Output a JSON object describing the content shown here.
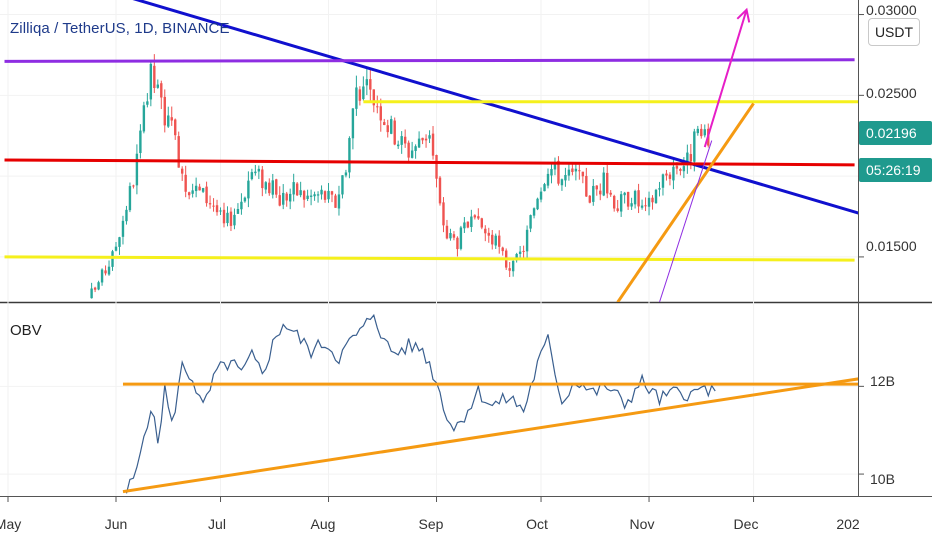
{
  "header": {
    "title": "Zilliqa / TetherUS, 1D, BINANCE",
    "currency": "USDT"
  },
  "colors": {
    "up": "#26a69a",
    "down": "#ef5350",
    "blue_line": "#1010ce",
    "red_line": "#e60000",
    "purple_line": "#8e2de2",
    "yellow_line": "#f5f01c",
    "orange_line": "#f59a12",
    "magenta_arrow": "#e61ec7",
    "obv_line": "#3a5f8f",
    "badge": "#1f9a8e"
  },
  "chart_data": [
    {
      "type": "candlestick",
      "title": "Zilliqa / TetherUS, 1D, BINANCE",
      "y_scale": "linear",
      "ylim": [
        0.01221,
        0.0309
      ],
      "x_range": [
        "2019-04-30",
        "2020-01-05"
      ],
      "last_price": "0.02196",
      "countdown": "05:26:19",
      "y_ticks": [
        "0.03000",
        "0.02500",
        "0.01500"
      ],
      "x_ticks": [
        "May",
        "Jun",
        "Jul",
        "Aug",
        "Sep",
        "Oct",
        "Nov",
        "Dec",
        "202"
      ],
      "close_path": [
        [
          "2019-05-25",
          0.0127
        ],
        [
          "2019-05-28",
          0.0138
        ],
        [
          "2019-05-31",
          0.015
        ],
        [
          "2019-06-03",
          0.0174
        ],
        [
          "2019-06-06",
          0.0198
        ],
        [
          "2019-06-09",
          0.0236
        ],
        [
          "2019-06-11",
          0.0262
        ],
        [
          "2019-06-13",
          0.0251
        ],
        [
          "2019-06-15",
          0.0238
        ],
        [
          "2019-06-18",
          0.0221
        ],
        [
          "2019-06-21",
          0.0196
        ],
        [
          "2019-06-25",
          0.019
        ],
        [
          "2019-06-29",
          0.0183
        ],
        [
          "2019-07-02",
          0.0169
        ],
        [
          "2019-07-06",
          0.0181
        ],
        [
          "2019-07-10",
          0.0203
        ],
        [
          "2019-07-14",
          0.0196
        ],
        [
          "2019-07-18",
          0.0186
        ],
        [
          "2019-07-22",
          0.0191
        ],
        [
          "2019-07-26",
          0.0187
        ],
        [
          "2019-07-30",
          0.0189
        ],
        [
          "2019-08-03",
          0.0183
        ],
        [
          "2019-08-06",
          0.0208
        ],
        [
          "2019-08-09",
          0.0256
        ],
        [
          "2019-08-12",
          0.0252
        ],
        [
          "2019-08-15",
          0.0246
        ],
        [
          "2019-08-18",
          0.0232
        ],
        [
          "2019-08-21",
          0.0223
        ],
        [
          "2019-08-24",
          0.0216
        ],
        [
          "2019-08-27",
          0.0221
        ],
        [
          "2019-08-30",
          0.0229
        ],
        [
          "2019-09-02",
          0.018
        ],
        [
          "2019-09-04",
          0.0163
        ],
        [
          "2019-09-07",
          0.016
        ],
        [
          "2019-09-10",
          0.017
        ],
        [
          "2019-09-14",
          0.0168
        ],
        [
          "2019-09-18",
          0.0158
        ],
        [
          "2019-09-21",
          0.0146
        ],
        [
          "2019-09-23",
          0.0143
        ],
        [
          "2019-09-26",
          0.0156
        ],
        [
          "2019-09-30",
          0.019
        ],
        [
          "2019-10-03",
          0.0207
        ],
        [
          "2019-10-07",
          0.0199
        ],
        [
          "2019-10-11",
          0.02
        ],
        [
          "2019-10-15",
          0.0188
        ],
        [
          "2019-10-19",
          0.0196
        ],
        [
          "2019-10-23",
          0.0182
        ],
        [
          "2019-10-27",
          0.0189
        ],
        [
          "2019-10-31",
          0.0177
        ],
        [
          "2019-11-04",
          0.0196
        ],
        [
          "2019-11-08",
          0.0206
        ],
        [
          "2019-11-12",
          0.0209
        ],
        [
          "2019-11-15",
          0.0226
        ],
        [
          "2019-11-18",
          0.0219
        ]
      ],
      "series": [
        {
          "name": "",
          "kind": "trendline",
          "color_key": "blue_line",
          "points": [
            [
              "2019-06-01",
              0.0313
            ],
            [
              "2020-01-05",
              0.0174
            ]
          ]
        },
        {
          "name": "",
          "kind": "trendline",
          "color_key": "red_line",
          "points": [
            [
              "2019-04-30",
              0.021
            ],
            [
              "2019-12-30",
              0.0207
            ]
          ]
        },
        {
          "name": "",
          "kind": "trendline",
          "color_key": "purple_line",
          "points": [
            [
              "2019-04-30",
              0.0271
            ],
            [
              "2019-12-30",
              0.0272
            ]
          ]
        },
        {
          "name": "",
          "kind": "trendline",
          "color_key": "yellow_line",
          "points": [
            [
              "2019-08-11",
              0.0246
            ],
            [
              "2020-01-05",
              0.0246
            ]
          ]
        },
        {
          "name": "",
          "kind": "trendline",
          "color_key": "yellow_line",
          "points": [
            [
              "2019-04-30",
              0.015
            ],
            [
              "2019-12-30",
              0.0148
            ]
          ]
        },
        {
          "name": "",
          "kind": "trendline",
          "color_key": "orange_line",
          "points": [
            [
              "2019-10-23",
              0.0122
            ],
            [
              "2019-12-01",
              0.0245
            ]
          ]
        },
        {
          "name": "",
          "kind": "trendline",
          "color_key": "purple_line",
          "points": [
            [
              "2019-11-04",
              0.0122
            ],
            [
              "2019-11-19",
              0.0222
            ]
          ]
        },
        {
          "name": "",
          "kind": "arrow",
          "color_key": "magenta_arrow",
          "points": [
            [
              "2019-11-17",
              0.0218
            ],
            [
              "2019-11-29",
              0.0303
            ]
          ]
        }
      ]
    },
    {
      "type": "line",
      "title": "OBV",
      "ylim": [
        9.5,
        13.9
      ],
      "y_unit": "B",
      "y_ticks": [
        "12B",
        "10B"
      ],
      "x_range": [
        "2019-04-30",
        "2020-01-05"
      ],
      "obv_path": [
        [
          "2019-06-04",
          9.59
        ],
        [
          "2019-06-07",
          10.05
        ],
        [
          "2019-06-09",
          10.9
        ],
        [
          "2019-06-11",
          11.55
        ],
        [
          "2019-06-13",
          10.72
        ],
        [
          "2019-06-15",
          11.95
        ],
        [
          "2019-06-17",
          11.1
        ],
        [
          "2019-06-20",
          12.45
        ],
        [
          "2019-06-23",
          12.18
        ],
        [
          "2019-06-26",
          11.5
        ],
        [
          "2019-06-30",
          12.35
        ],
        [
          "2019-07-04",
          12.55
        ],
        [
          "2019-07-07",
          12.28
        ],
        [
          "2019-07-10",
          12.68
        ],
        [
          "2019-07-13",
          12.3
        ],
        [
          "2019-07-16",
          12.95
        ],
        [
          "2019-07-19",
          13.45
        ],
        [
          "2019-07-23",
          13.15
        ],
        [
          "2019-07-27",
          12.8
        ],
        [
          "2019-07-31",
          13.0
        ],
        [
          "2019-08-04",
          12.65
        ],
        [
          "2019-08-08",
          13.1
        ],
        [
          "2019-08-11",
          13.3
        ],
        [
          "2019-08-14",
          13.7
        ],
        [
          "2019-08-17",
          13.0
        ],
        [
          "2019-08-20",
          12.75
        ],
        [
          "2019-08-24",
          12.92
        ],
        [
          "2019-08-28",
          12.85
        ],
        [
          "2019-09-01",
          12.12
        ],
        [
          "2019-09-03",
          11.55
        ],
        [
          "2019-09-06",
          11.02
        ],
        [
          "2019-09-09",
          11.35
        ],
        [
          "2019-09-13",
          11.88
        ],
        [
          "2019-09-17",
          11.55
        ],
        [
          "2019-09-22",
          11.75
        ],
        [
          "2019-09-26",
          11.45
        ],
        [
          "2019-09-30",
          12.5
        ],
        [
          "2019-10-03",
          13.05
        ],
        [
          "2019-10-07",
          11.65
        ],
        [
          "2019-10-11",
          12.15
        ],
        [
          "2019-10-16",
          11.85
        ],
        [
          "2019-10-20",
          12.0
        ],
        [
          "2019-10-25",
          11.6
        ],
        [
          "2019-10-30",
          12.1
        ],
        [
          "2019-11-04",
          11.7
        ],
        [
          "2019-11-09",
          11.88
        ],
        [
          "2019-11-14",
          11.82
        ],
        [
          "2019-11-17",
          11.98
        ],
        [
          "2019-11-20",
          11.78
        ]
      ],
      "series": [
        {
          "name": "",
          "kind": "trendline",
          "color_key": "orange_line",
          "points": [
            [
              "2019-06-03",
              12.05
            ],
            [
              "2020-01-05",
              12.05
            ]
          ]
        },
        {
          "name": "",
          "kind": "trendline",
          "color_key": "orange_line",
          "points": [
            [
              "2019-06-03",
              9.6
            ],
            [
              "2020-01-05",
              12.23
            ]
          ]
        }
      ]
    }
  ]
}
